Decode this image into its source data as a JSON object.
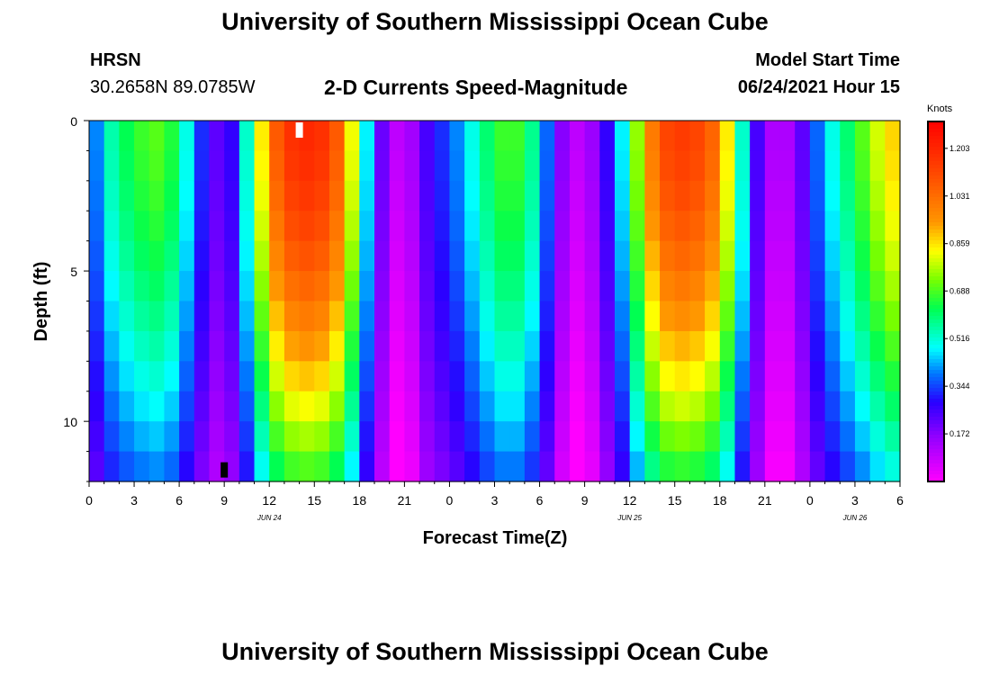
{
  "page": {
    "title_top": "University of Southern Mississippi Ocean Cube",
    "title_bottom": "University of Southern Mississippi Ocean Cube",
    "station_code": "HRSN",
    "station_coords": "30.2658N  89.0785W",
    "model_start_label": "Model Start Time",
    "model_start_value": "06/24/2021 Hour 15"
  },
  "chart_data": {
    "type": "heatmap",
    "title": "2-D Currents Speed-Magnitude",
    "xlabel": "Forecast Time(Z)",
    "ylabel": "Depth (ft)",
    "colorbar_label": "Knots",
    "x_range_hours": [
      0,
      54
    ],
    "y_range_ft": [
      0,
      12
    ],
    "x_tick_labels": [
      "0",
      "3",
      "6",
      "9",
      "12",
      "15",
      "18",
      "21",
      "0",
      "3",
      "6",
      "9",
      "12",
      "15",
      "18",
      "21",
      "0",
      "3",
      "6"
    ],
    "y_tick_labels": [
      "0",
      "5",
      "10"
    ],
    "y_tick_values": [
      0,
      5,
      10
    ],
    "date_labels": [
      {
        "label": "JUN 24",
        "hour": 12
      },
      {
        "label": "JUN 25",
        "hour": 36
      },
      {
        "label": "JUN 26",
        "hour": 51
      }
    ],
    "colorbar_ticks": [
      "0.172",
      "0.344",
      "0.516",
      "0.688",
      "0.859",
      "1.031",
      "1.203"
    ],
    "colorbar_range": [
      0.0,
      1.3
    ],
    "markers": [
      {
        "type": "white",
        "hour": 14,
        "depth_ft": 0.3
      },
      {
        "type": "black",
        "hour": 9,
        "depth_ft": 11.6
      }
    ],
    "surface_speed_profile": {
      "hours": [
        0,
        1,
        2,
        3,
        4,
        5,
        6,
        7,
        8,
        9,
        10,
        11,
        12,
        13,
        14,
        15,
        16,
        17,
        18,
        19,
        20,
        21,
        22,
        23,
        24,
        25,
        26,
        27,
        28,
        29,
        30,
        31,
        32,
        33,
        34,
        35,
        36,
        37,
        38,
        39,
        40,
        41,
        42,
        43,
        44,
        45,
        46,
        47,
        48,
        49,
        50,
        51,
        52,
        53,
        54
      ],
      "knots": [
        0.3,
        0.5,
        0.6,
        0.65,
        0.7,
        0.7,
        0.6,
        0.4,
        0.25,
        0.2,
        0.35,
        0.7,
        1.0,
        1.15,
        1.2,
        1.2,
        1.15,
        1.0,
        0.65,
        0.3,
        0.12,
        0.08,
        0.2,
        0.3,
        0.35,
        0.45,
        0.55,
        0.65,
        0.7,
        0.65,
        0.5,
        0.25,
        0.1,
        0.1,
        0.2,
        0.35,
        0.6,
        0.9,
        1.1,
        1.15,
        1.15,
        1.1,
        1.0,
        0.7,
        0.35,
        0.15,
        0.1,
        0.15,
        0.3,
        0.45,
        0.55,
        0.65,
        0.75,
        0.85,
        0.9
      ]
    }
  }
}
